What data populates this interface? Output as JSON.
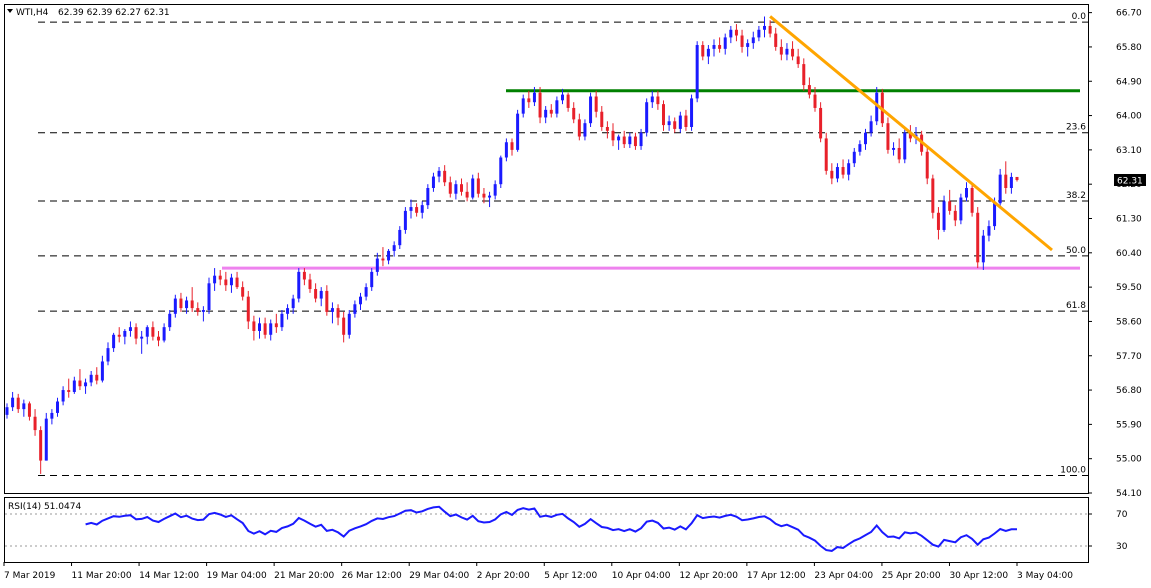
{
  "chart_data": [
    {
      "type": "candlestick",
      "header": {
        "symbol": "WTI,H4",
        "ohlc": "62.39 62.39 62.27 62.31"
      },
      "last_price": {
        "label": "62.31",
        "value": 62.31
      },
      "price_axis": {
        "range": [
          54.1,
          66.9
        ],
        "ticks": [
          "66.70",
          "65.80",
          "64.90",
          "64.00",
          "63.10",
          "62.20",
          "61.30",
          "60.40",
          "59.50",
          "58.60",
          "57.70",
          "56.80",
          "55.90",
          "55.00",
          "54.10"
        ]
      },
      "time_axis": {
        "labels": [
          "7 Mar 2019",
          "11 Mar 20:00",
          "14 Mar 12:00",
          "19 Mar 04:00",
          "21 Mar 20:00",
          "26 Mar 12:00",
          "29 Mar 04:00",
          "2 Apr 20:00",
          "5 Apr 12:00",
          "10 Apr 04:00",
          "12 Apr 20:00",
          "17 Apr 12:00",
          "23 Apr 04:00",
          "25 Apr 20:00",
          "30 Apr 12:00",
          "3 May 04:00"
        ]
      },
      "colors": {
        "up": "#1a1aff",
        "down": "#e8202a",
        "fib": "#000000"
      },
      "fibonacci_levels": [
        {
          "label": "0.0",
          "price": 66.45
        },
        {
          "label": "23.6",
          "price": 63.55
        },
        {
          "label": "38.2",
          "price": 61.76
        },
        {
          "label": "50.0",
          "price": 60.32
        },
        {
          "label": "61.8",
          "price": 58.87
        },
        {
          "label": "100.0",
          "price": 54.56
        }
      ],
      "horizontal_lines": [
        {
          "name": "resistance",
          "price": 64.65,
          "color": "#008000"
        },
        {
          "name": "support",
          "price": 60.0,
          "color": "#ee82ee"
        }
      ],
      "trendline": {
        "color": "#ffa500",
        "from": {
          "bar": 136,
          "price": 66.6
        },
        "to": {
          "bar": 177,
          "price": 61.6
        }
      },
      "candles": [
        [
          56.15,
          56.45,
          56.05,
          56.35
        ],
        [
          56.35,
          56.75,
          56.25,
          56.6
        ],
        [
          56.6,
          56.7,
          56.2,
          56.3
        ],
        [
          56.3,
          56.55,
          56.1,
          56.45
        ],
        [
          56.45,
          56.5,
          56.0,
          56.1
        ],
        [
          56.1,
          56.3,
          55.6,
          55.75
        ],
        [
          55.75,
          55.85,
          54.6,
          54.95
        ],
        [
          54.95,
          56.2,
          54.95,
          56.05
        ],
        [
          56.05,
          56.3,
          55.9,
          56.2
        ],
        [
          56.2,
          56.6,
          56.1,
          56.5
        ],
        [
          56.5,
          56.9,
          56.4,
          56.8
        ],
        [
          56.8,
          57.1,
          56.6,
          56.75
        ],
        [
          56.75,
          57.15,
          56.7,
          57.05
        ],
        [
          57.05,
          57.35,
          56.8,
          56.9
        ],
        [
          56.9,
          57.1,
          56.7,
          57.0
        ],
        [
          57.0,
          57.3,
          56.9,
          57.2
        ],
        [
          57.2,
          57.4,
          56.95,
          57.05
        ],
        [
          57.05,
          57.7,
          57.0,
          57.55
        ],
        [
          57.55,
          58.05,
          57.45,
          57.9
        ],
        [
          57.9,
          58.3,
          57.8,
          58.25
        ],
        [
          58.25,
          58.45,
          58.05,
          58.2
        ],
        [
          58.2,
          58.4,
          58.0,
          58.35
        ],
        [
          58.35,
          58.6,
          58.2,
          58.45
        ],
        [
          58.45,
          58.55,
          58.0,
          58.15
        ],
        [
          58.15,
          58.35,
          57.75,
          58.2
        ],
        [
          58.2,
          58.5,
          58.0,
          58.45
        ],
        [
          58.45,
          58.6,
          58.1,
          58.2
        ],
        [
          58.2,
          58.35,
          57.95,
          58.1
        ],
        [
          58.1,
          58.55,
          58.05,
          58.45
        ],
        [
          58.45,
          58.9,
          58.35,
          58.8
        ],
        [
          58.8,
          59.3,
          58.7,
          59.2
        ],
        [
          59.2,
          59.35,
          58.85,
          58.95
        ],
        [
          58.95,
          59.25,
          58.8,
          59.15
        ],
        [
          59.15,
          59.5,
          58.85,
          58.95
        ],
        [
          58.95,
          59.1,
          58.75,
          58.85
        ],
        [
          58.85,
          59.0,
          58.6,
          58.9
        ],
        [
          58.9,
          59.75,
          58.8,
          59.6
        ],
        [
          59.6,
          60.0,
          59.4,
          59.8
        ],
        [
          59.8,
          59.95,
          59.55,
          59.7
        ],
        [
          59.7,
          59.9,
          59.4,
          59.55
        ],
        [
          59.55,
          59.85,
          59.35,
          59.75
        ],
        [
          59.75,
          59.9,
          59.45,
          59.5
        ],
        [
          59.5,
          59.65,
          59.15,
          59.25
        ],
        [
          59.25,
          59.4,
          58.4,
          58.6
        ],
        [
          58.6,
          58.75,
          58.1,
          58.35
        ],
        [
          58.35,
          58.7,
          58.15,
          58.55
        ],
        [
          58.55,
          58.7,
          58.15,
          58.25
        ],
        [
          58.25,
          58.65,
          58.1,
          58.55
        ],
        [
          58.55,
          58.8,
          58.3,
          58.45
        ],
        [
          58.45,
          58.9,
          58.35,
          58.8
        ],
        [
          58.8,
          59.05,
          58.65,
          58.95
        ],
        [
          58.95,
          59.3,
          58.8,
          59.2
        ],
        [
          59.2,
          60.0,
          59.1,
          59.9
        ],
        [
          59.9,
          60.0,
          59.55,
          59.7
        ],
        [
          59.7,
          59.85,
          59.35,
          59.45
        ],
        [
          59.45,
          59.6,
          59.1,
          59.2
        ],
        [
          59.2,
          59.5,
          59.0,
          59.4
        ],
        [
          59.4,
          59.55,
          58.75,
          58.85
        ],
        [
          58.85,
          59.1,
          58.55,
          58.95
        ],
        [
          58.95,
          59.05,
          58.5,
          58.7
        ],
        [
          58.7,
          58.85,
          58.05,
          58.25
        ],
        [
          58.25,
          58.9,
          58.15,
          58.8
        ],
        [
          58.8,
          59.15,
          58.7,
          59.05
        ],
        [
          59.05,
          59.35,
          58.9,
          59.25
        ],
        [
          59.25,
          59.6,
          59.15,
          59.5
        ],
        [
          59.5,
          60.0,
          59.4,
          59.9
        ],
        [
          59.9,
          60.4,
          59.8,
          60.25
        ],
        [
          60.25,
          60.55,
          60.05,
          60.2
        ],
        [
          60.2,
          60.5,
          60.1,
          60.45
        ],
        [
          60.45,
          60.7,
          60.3,
          60.6
        ],
        [
          60.6,
          61.1,
          60.5,
          61.0
        ],
        [
          61.0,
          61.6,
          60.9,
          61.5
        ],
        [
          61.5,
          61.8,
          61.3,
          61.6
        ],
        [
          61.6,
          61.7,
          61.35,
          61.45
        ],
        [
          61.45,
          61.75,
          61.3,
          61.65
        ],
        [
          61.65,
          62.2,
          61.55,
          62.1
        ],
        [
          62.1,
          62.5,
          62.0,
          62.4
        ],
        [
          62.4,
          62.65,
          62.25,
          62.55
        ],
        [
          62.55,
          62.7,
          62.15,
          62.25
        ],
        [
          62.25,
          62.4,
          61.85,
          61.95
        ],
        [
          61.95,
          62.3,
          61.8,
          62.2
        ],
        [
          62.2,
          62.35,
          61.9,
          62.0
        ],
        [
          62.0,
          62.25,
          61.75,
          61.85
        ],
        [
          61.85,
          62.45,
          61.8,
          62.35
        ],
        [
          62.35,
          62.5,
          61.85,
          61.95
        ],
        [
          61.95,
          62.1,
          61.7,
          61.85
        ],
        [
          61.85,
          62.0,
          61.6,
          61.9
        ],
        [
          61.9,
          62.3,
          61.8,
          62.2
        ],
        [
          62.2,
          62.95,
          62.1,
          62.9
        ],
        [
          62.9,
          63.4,
          62.8,
          63.3
        ],
        [
          63.3,
          63.4,
          62.95,
          63.1
        ],
        [
          63.1,
          64.15,
          63.05,
          64.05
        ],
        [
          64.05,
          64.55,
          63.95,
          64.45
        ],
        [
          64.45,
          64.65,
          64.2,
          64.35
        ],
        [
          64.35,
          64.75,
          64.25,
          64.6
        ],
        [
          64.6,
          64.75,
          63.8,
          63.95
        ],
        [
          63.95,
          64.25,
          63.8,
          64.15
        ],
        [
          64.15,
          64.3,
          63.95,
          64.05
        ],
        [
          64.05,
          64.5,
          63.95,
          64.4
        ],
        [
          64.4,
          64.7,
          64.3,
          64.55
        ],
        [
          64.55,
          64.6,
          64.1,
          64.2
        ],
        [
          64.2,
          64.35,
          63.8,
          63.9
        ],
        [
          63.9,
          64.05,
          63.35,
          63.45
        ],
        [
          63.45,
          63.9,
          63.35,
          63.8
        ],
        [
          63.8,
          64.6,
          63.7,
          64.5
        ],
        [
          64.5,
          64.65,
          63.95,
          64.1
        ],
        [
          64.1,
          64.25,
          63.6,
          63.7
        ],
        [
          63.7,
          63.85,
          63.4,
          63.6
        ],
        [
          63.6,
          63.8,
          63.2,
          63.35
        ],
        [
          63.35,
          63.5,
          63.1,
          63.45
        ],
        [
          63.45,
          63.6,
          63.15,
          63.25
        ],
        [
          63.25,
          63.55,
          63.15,
          63.45
        ],
        [
          63.45,
          63.55,
          63.1,
          63.2
        ],
        [
          63.2,
          63.65,
          63.1,
          63.55
        ],
        [
          63.55,
          64.45,
          63.45,
          64.35
        ],
        [
          64.35,
          64.65,
          64.2,
          64.5
        ],
        [
          64.5,
          64.65,
          64.15,
          64.3
        ],
        [
          64.3,
          64.4,
          63.6,
          63.75
        ],
        [
          63.75,
          64.0,
          63.6,
          63.85
        ],
        [
          63.85,
          63.95,
          63.55,
          63.65
        ],
        [
          63.65,
          64.1,
          63.55,
          64.0
        ],
        [
          64.0,
          64.15,
          63.6,
          63.7
        ],
        [
          63.7,
          64.55,
          63.6,
          64.45
        ],
        [
          64.45,
          65.95,
          64.35,
          65.85
        ],
        [
          65.85,
          65.95,
          65.45,
          65.55
        ],
        [
          65.55,
          65.85,
          65.35,
          65.75
        ],
        [
          65.75,
          66.0,
          65.55,
          65.85
        ],
        [
          65.85,
          66.05,
          65.65,
          65.75
        ],
        [
          65.75,
          66.15,
          65.6,
          66.05
        ],
        [
          66.05,
          66.35,
          65.9,
          66.25
        ],
        [
          66.25,
          66.4,
          65.95,
          66.1
        ],
        [
          66.1,
          66.25,
          65.65,
          65.8
        ],
        [
          65.8,
          66.0,
          65.55,
          65.9
        ],
        [
          65.9,
          66.2,
          65.75,
          66.05
        ],
        [
          66.05,
          66.35,
          65.95,
          66.25
        ],
        [
          66.25,
          66.6,
          66.05,
          66.35
        ],
        [
          66.35,
          66.5,
          66.05,
          66.15
        ],
        [
          66.15,
          66.3,
          65.7,
          65.8
        ],
        [
          65.8,
          66.0,
          65.45,
          65.6
        ],
        [
          65.6,
          65.9,
          65.45,
          65.75
        ],
        [
          65.75,
          65.95,
          65.45,
          65.55
        ],
        [
          65.55,
          65.75,
          65.25,
          65.35
        ],
        [
          65.35,
          65.5,
          64.65,
          64.8
        ],
        [
          64.8,
          65.0,
          64.45,
          64.55
        ],
        [
          64.55,
          64.75,
          64.1,
          64.2
        ],
        [
          64.2,
          64.35,
          63.3,
          63.4
        ],
        [
          63.4,
          63.55,
          62.45,
          62.55
        ],
        [
          62.55,
          62.75,
          62.2,
          62.35
        ],
        [
          62.35,
          62.75,
          62.25,
          62.65
        ],
        [
          62.65,
          62.85,
          62.35,
          62.45
        ],
        [
          62.45,
          62.85,
          62.3,
          62.75
        ],
        [
          62.75,
          63.15,
          62.65,
          63.05
        ],
        [
          63.05,
          63.35,
          62.95,
          63.25
        ],
        [
          63.25,
          63.65,
          63.1,
          63.55
        ],
        [
          63.55,
          64.0,
          63.45,
          63.85
        ],
        [
          63.85,
          64.75,
          63.75,
          64.6
        ],
        [
          64.6,
          64.7,
          63.7,
          63.8
        ],
        [
          63.8,
          63.95,
          63.0,
          63.1
        ],
        [
          63.1,
          63.3,
          62.95,
          63.15
        ],
        [
          63.15,
          63.4,
          62.75,
          62.85
        ],
        [
          62.85,
          63.65,
          62.75,
          63.55
        ],
        [
          63.55,
          63.75,
          63.3,
          63.4
        ],
        [
          63.4,
          63.7,
          63.25,
          63.5
        ],
        [
          63.5,
          63.6,
          62.95,
          63.05
        ],
        [
          63.05,
          63.15,
          62.2,
          62.35
        ],
        [
          62.35,
          62.45,
          61.3,
          61.45
        ],
        [
          61.45,
          61.6,
          60.75,
          61.0
        ],
        [
          61.0,
          61.9,
          60.95,
          61.75
        ],
        [
          61.75,
          62.05,
          61.4,
          61.5
        ],
        [
          61.5,
          61.65,
          61.1,
          61.25
        ],
        [
          61.25,
          61.95,
          61.15,
          61.85
        ],
        [
          61.85,
          62.25,
          61.75,
          62.1
        ],
        [
          62.1,
          62.2,
          61.35,
          61.45
        ],
        [
          61.45,
          61.6,
          60.0,
          60.15
        ],
        [
          60.15,
          61.0,
          59.95,
          60.85
        ],
        [
          60.85,
          61.25,
          60.7,
          61.1
        ],
        [
          61.1,
          61.85,
          61.0,
          61.7
        ],
        [
          61.7,
          62.6,
          61.6,
          62.45
        ],
        [
          62.45,
          62.8,
          61.95,
          62.1
        ],
        [
          62.1,
          62.5,
          61.95,
          62.39
        ],
        [
          62.39,
          62.39,
          62.27,
          62.31
        ]
      ],
      "rsi": {
        "label": "RSI(14) 51.0474",
        "period": 14,
        "current_value": 51.0474,
        "levels": [
          {
            "label": "70",
            "value": 70
          },
          {
            "label": "30",
            "value": 30
          }
        ],
        "range": [
          10,
          90
        ],
        "color": "#1a1aff"
      }
    }
  ]
}
